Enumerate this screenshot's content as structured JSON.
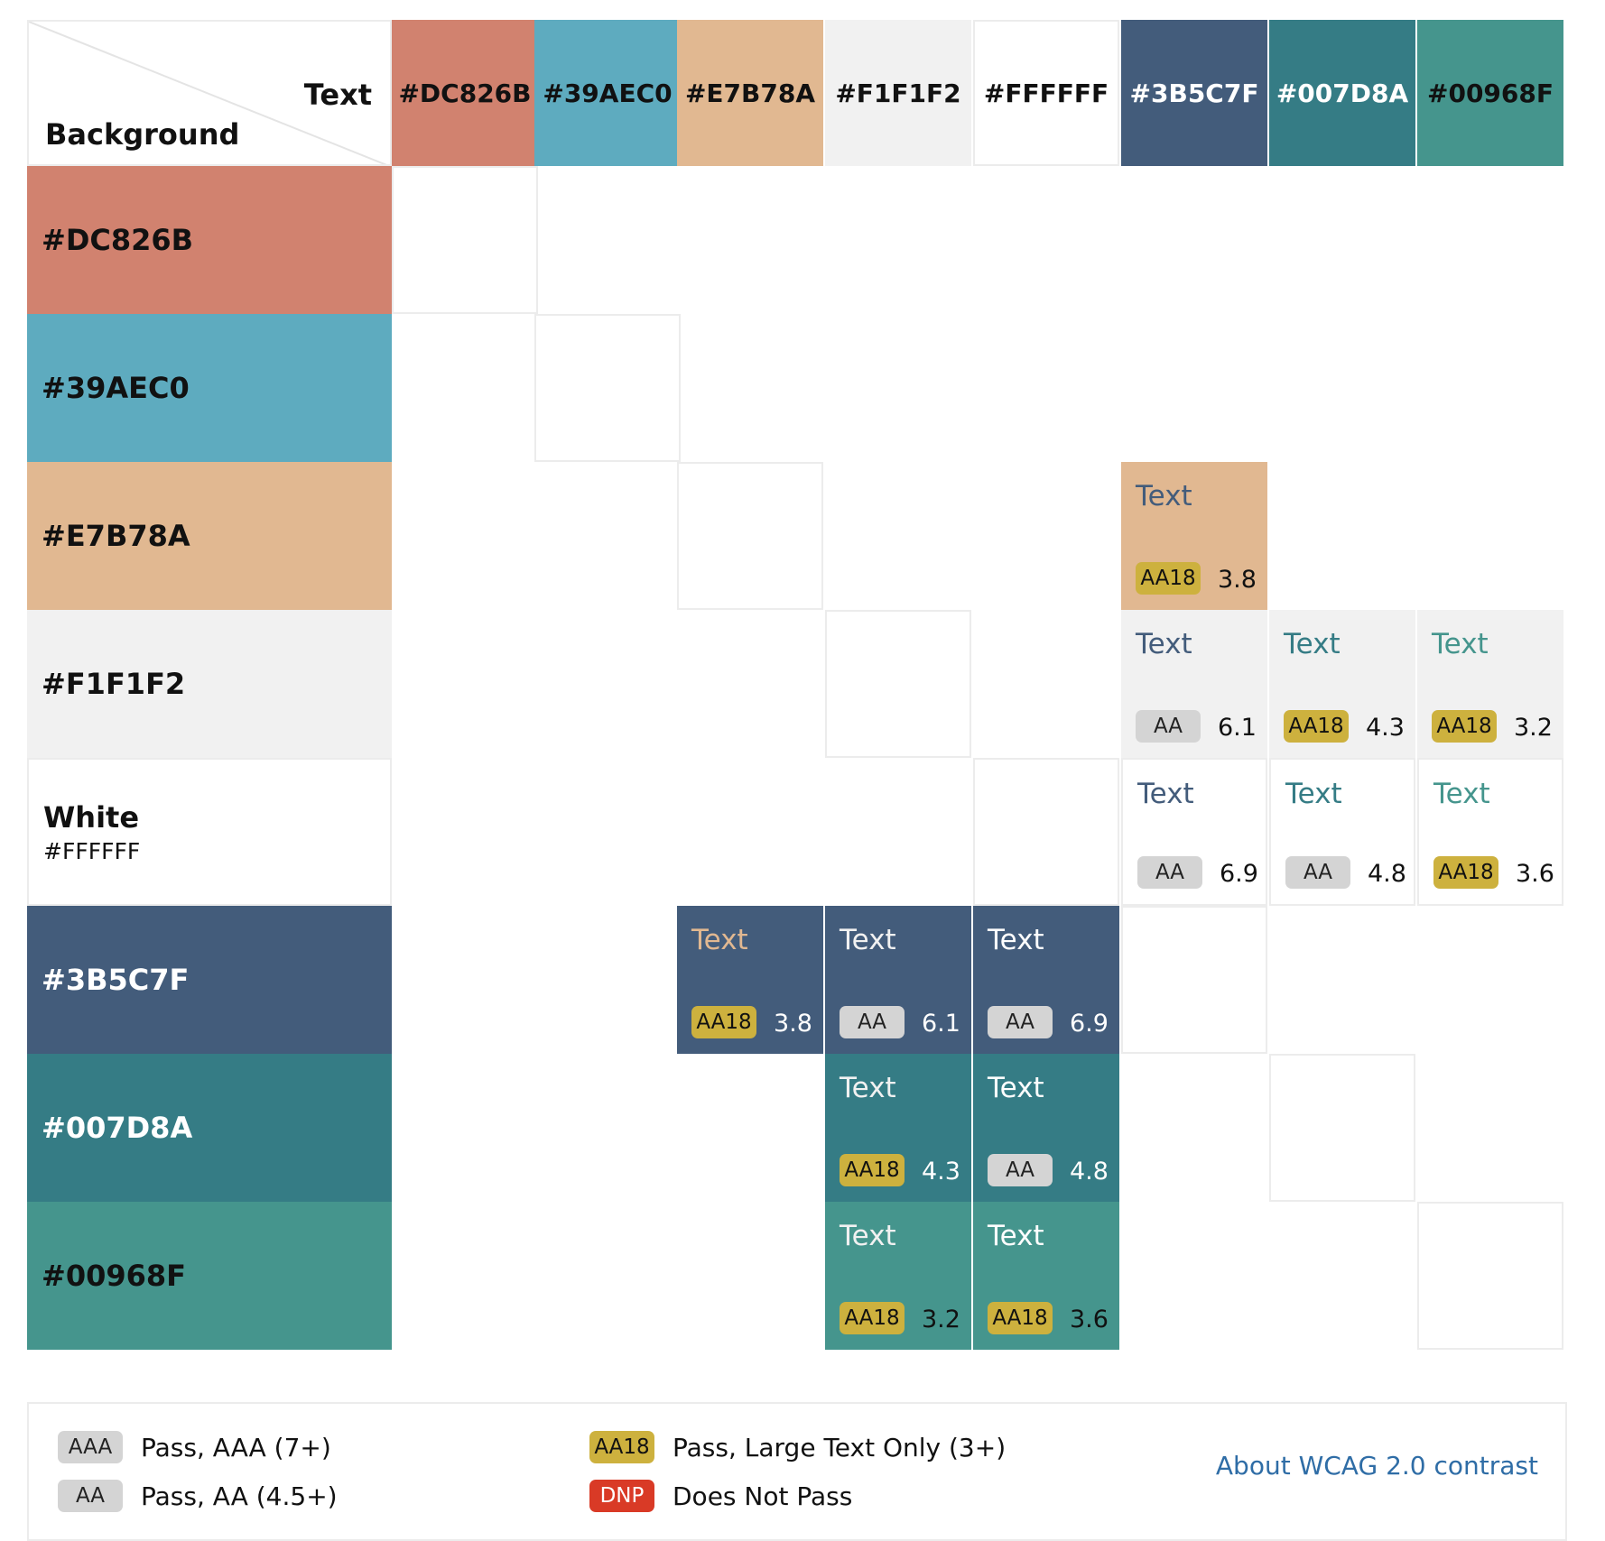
{
  "corner": {
    "text_label": "Text",
    "background_label": "Background"
  },
  "text_colors": [
    {
      "label": "#DC826B",
      "hex": "#D1826F",
      "label_color": "#111111"
    },
    {
      "label": "#39AEC0",
      "hex": "#5EABBF",
      "label_color": "#111111"
    },
    {
      "label": "#E7B78A",
      "hex": "#E1B891",
      "label_color": "#111111"
    },
    {
      "label": "#F1F1F2",
      "hex": "#F1F1F1",
      "label_color": "#111111"
    },
    {
      "label": "#FFFFFF",
      "hex": "#FFFFFF",
      "label_color": "#111111"
    },
    {
      "label": "#3B5C7F",
      "hex": "#435C7B",
      "label_color": "#FFFFFF"
    },
    {
      "label": "#007D8A",
      "hex": "#357C85",
      "label_color": "#FFFFFF"
    },
    {
      "label": "#00968F",
      "hex": "#45958D",
      "label_color": "#111111"
    }
  ],
  "background_colors": [
    {
      "label": "#DC826B",
      "sub": "",
      "hex": "#D1826F",
      "label_color": "#111111"
    },
    {
      "label": "#39AEC0",
      "sub": "",
      "hex": "#5EABBF",
      "label_color": "#111111"
    },
    {
      "label": "#E7B78A",
      "sub": "",
      "hex": "#E1B891",
      "label_color": "#111111"
    },
    {
      "label": "#F1F1F2",
      "sub": "",
      "hex": "#F1F1F1",
      "label_color": "#111111"
    },
    {
      "label": "White",
      "sub": "#FFFFFF",
      "hex": "#FFFFFF",
      "label_color": "#111111"
    },
    {
      "label": "#3B5C7F",
      "sub": "",
      "hex": "#435C7B",
      "label_color": "#FFFFFF"
    },
    {
      "label": "#007D8A",
      "sub": "",
      "hex": "#357C85",
      "label_color": "#FFFFFF"
    },
    {
      "label": "#00968F",
      "sub": "",
      "hex": "#45958D",
      "label_color": "#111111"
    }
  ],
  "sample_text": "Text",
  "combinations": [
    {
      "row": 2,
      "col": 5,
      "badge": "AA18",
      "ratio": "3.8"
    },
    {
      "row": 3,
      "col": 5,
      "badge": "AA",
      "ratio": "6.1"
    },
    {
      "row": 3,
      "col": 6,
      "badge": "AA18",
      "ratio": "4.3"
    },
    {
      "row": 3,
      "col": 7,
      "badge": "AA18",
      "ratio": "3.2"
    },
    {
      "row": 4,
      "col": 5,
      "badge": "AA",
      "ratio": "6.9"
    },
    {
      "row": 4,
      "col": 6,
      "badge": "AA",
      "ratio": "4.8"
    },
    {
      "row": 4,
      "col": 7,
      "badge": "AA18",
      "ratio": "3.6"
    },
    {
      "row": 5,
      "col": 2,
      "badge": "AA18",
      "ratio": "3.8"
    },
    {
      "row": 5,
      "col": 3,
      "badge": "AA",
      "ratio": "6.1"
    },
    {
      "row": 5,
      "col": 4,
      "badge": "AA",
      "ratio": "6.9"
    },
    {
      "row": 6,
      "col": 3,
      "badge": "AA18",
      "ratio": "4.3"
    },
    {
      "row": 6,
      "col": 4,
      "badge": "AA",
      "ratio": "4.8"
    },
    {
      "row": 7,
      "col": 3,
      "badge": "AA18",
      "ratio": "3.2"
    },
    {
      "row": 7,
      "col": 4,
      "badge": "AA18",
      "ratio": "3.6"
    }
  ],
  "badge_styles": {
    "AAA": {
      "bg": "#D4D4D4",
      "fg": "#222222"
    },
    "AA": {
      "bg": "#D4D4D4",
      "fg": "#222222"
    },
    "AA18": {
      "bg": "#CDB13E",
      "fg": "#111111"
    },
    "DNP": {
      "bg": "#D93A26",
      "fg": "#FFFFFF"
    }
  },
  "legend": {
    "aaa": {
      "badge": "AAA",
      "text": "Pass, AAA (7+)"
    },
    "aa": {
      "badge": "AA",
      "text": "Pass, AA (4.5+)"
    },
    "aa18": {
      "badge": "AA18",
      "text": "Pass, Large Text Only (3+)"
    },
    "dnp": {
      "badge": "DNP",
      "text": "Does Not Pass"
    },
    "link": "About WCAG 2.0 contrast"
  }
}
